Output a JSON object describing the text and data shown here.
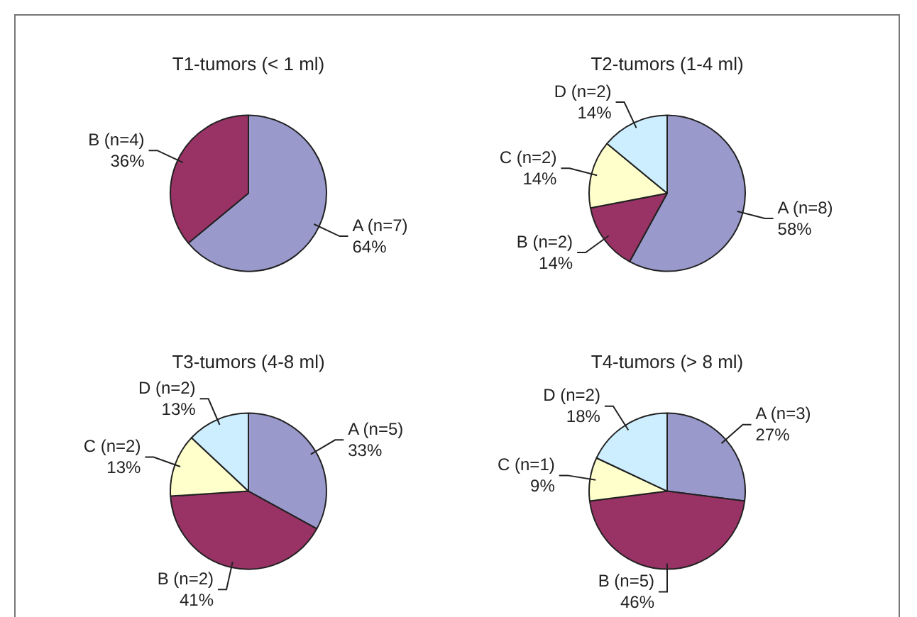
{
  "chart_data": [
    {
      "type": "pie",
      "title": "T1-tumors (< 1 ml)",
      "categories": [
        "A (n=7)",
        "B (n=4)"
      ],
      "values": [
        64,
        36
      ],
      "colors": [
        "#9999cc",
        "#993366"
      ],
      "value_labels": [
        "64%",
        "36%"
      ]
    },
    {
      "type": "pie",
      "title": "T2-tumors (1-4 ml)",
      "categories": [
        "A (n=8)",
        "B (n=2)",
        "C (n=2)",
        "D (n=2)"
      ],
      "values": [
        58,
        14,
        14,
        14
      ],
      "colors": [
        "#9999cc",
        "#993366",
        "#ffffcc",
        "#cceeff"
      ],
      "value_labels": [
        "58%",
        "14%",
        "14%",
        "14%"
      ]
    },
    {
      "type": "pie",
      "title": "T3-tumors (4-8 ml)",
      "categories": [
        "A (n=5)",
        "B (n=2)",
        "C (n=2)",
        "D (n=2)"
      ],
      "values": [
        33,
        41,
        13,
        13
      ],
      "colors": [
        "#9999cc",
        "#993366",
        "#ffffcc",
        "#cceeff"
      ],
      "value_labels": [
        "33%",
        "41%",
        "13%",
        "13%"
      ]
    },
    {
      "type": "pie",
      "title": "T4-tumors (> 8 ml)",
      "categories": [
        "A (n=3)",
        "B (n=5)",
        "C (n=1)",
        "D (n=2)"
      ],
      "values": [
        27,
        46,
        9,
        18
      ],
      "colors": [
        "#9999cc",
        "#993366",
        "#ffffcc",
        "#cceeff"
      ],
      "value_labels": [
        "27%",
        "46%",
        "9%",
        "18%"
      ]
    }
  ]
}
